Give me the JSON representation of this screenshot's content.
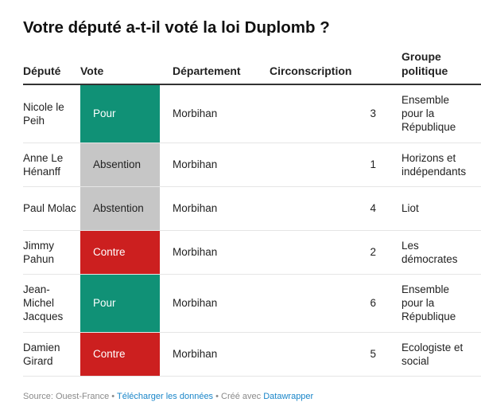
{
  "title": "Votre député a-t-il voté la loi Duplomb ?",
  "columns": [
    "Député",
    "Vote",
    "Département",
    "Circonscription",
    "Groupe politique"
  ],
  "colors": {
    "pour": "#109176",
    "abstention": "#c6c6c6",
    "contre": "#cc1f1f"
  },
  "rows": [
    {
      "deputy": "Nicole le Peih",
      "vote": "Pour",
      "vote_kind": "pour",
      "department": "Morbihan",
      "circonscription": "3",
      "group": "Ensemble pour la République"
    },
    {
      "deputy": "Anne Le Hénanff",
      "vote": "Absention",
      "vote_kind": "abstention",
      "department": "Morbihan",
      "circonscription": "1",
      "group": "Horizons et indépendants"
    },
    {
      "deputy": "Paul Molac",
      "vote": "Abstention",
      "vote_kind": "abstention",
      "department": "Morbihan",
      "circonscription": "4",
      "group": "Liot"
    },
    {
      "deputy": "Jimmy Pahun",
      "vote": "Contre",
      "vote_kind": "contre",
      "department": "Morbihan",
      "circonscription": "2",
      "group": "Les démocrates"
    },
    {
      "deputy": "Jean-Michel Jacques",
      "vote": "Pour",
      "vote_kind": "pour",
      "department": "Morbihan",
      "circonscription": "6",
      "group": "Ensemble pour la République"
    },
    {
      "deputy": "Damien Girard",
      "vote": "Contre",
      "vote_kind": "contre",
      "department": "Morbihan",
      "circonscription": "5",
      "group": "Ecologiste et social"
    }
  ],
  "footer": {
    "source": "Source: Ouest-France",
    "sep1": " • ",
    "download": "Télécharger les données",
    "sep2": " • ",
    "created": "Créé avec ",
    "tool": "Datawrapper"
  }
}
